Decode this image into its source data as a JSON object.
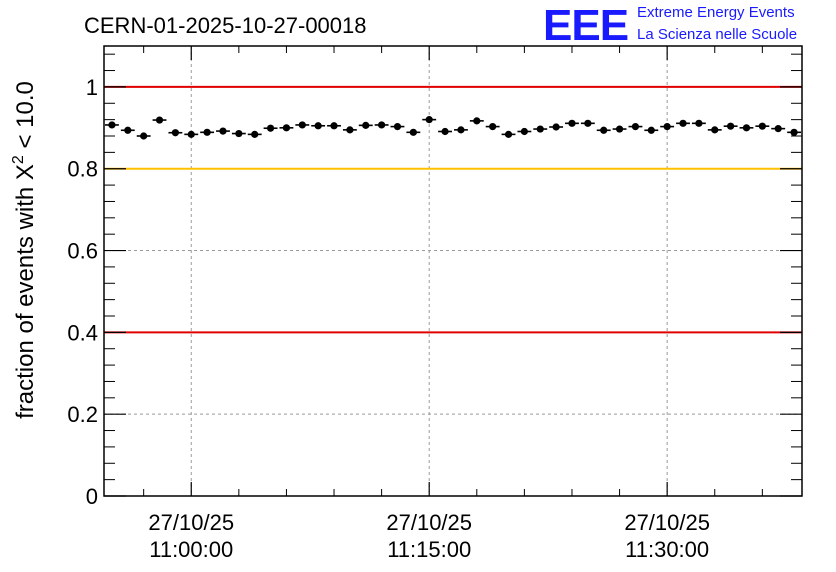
{
  "logo": {
    "mark": "EEE",
    "line1": "Extreme Energy Events",
    "line2": "La Scienza nelle Scuole",
    "color": "#1a1aff"
  },
  "chart_data": {
    "type": "scatter",
    "title": "CERN-01-2025-10-27-00018",
    "ylabel": "fraction of events with Χ² < 10.0",
    "ylabel_parts": {
      "before": "fraction of events with ",
      "chi": "Χ",
      "sup": "2",
      "after": " < 10.0"
    },
    "xlabel": "",
    "x_unit": "minutes after 27/10/25 10:54:30",
    "xlim": [
      0,
      44
    ],
    "ylim": [
      0,
      1.1
    ],
    "grid": true,
    "y_ticks": [
      {
        "value": 0,
        "label": "0"
      },
      {
        "value": 0.2,
        "label": "0.2"
      },
      {
        "value": 0.4,
        "label": "0.4"
      },
      {
        "value": 0.6,
        "label": "0.6"
      },
      {
        "value": 0.8,
        "label": "0.8"
      },
      {
        "value": 1.0,
        "label": "1"
      }
    ],
    "x_ticks": [
      {
        "value": 5.5,
        "date": "27/10/25",
        "time": "11:00:00"
      },
      {
        "value": 20.5,
        "date": "27/10/25",
        "time": "11:15:00"
      },
      {
        "value": 35.5,
        "date": "27/10/25",
        "time": "11:30:00"
      }
    ],
    "reference_lines": [
      {
        "y": 1.0,
        "color": "#e00000"
      },
      {
        "y": 0.8,
        "color": "#ffc000"
      },
      {
        "y": 0.4,
        "color": "#e00000"
      }
    ],
    "bin_width": 1,
    "series": [
      {
        "color": "#000000",
        "x": [
          0.5,
          1.5,
          2.5,
          3.5,
          4.5,
          5.5,
          6.5,
          7.5,
          8.5,
          9.5,
          10.5,
          11.5,
          12.5,
          13.5,
          14.5,
          15.5,
          16.5,
          17.5,
          18.5,
          19.5,
          20.5,
          21.5,
          22.5,
          23.5,
          24.5,
          25.5,
          26.5,
          27.5,
          28.5,
          29.5,
          30.5,
          31.5,
          32.5,
          33.5,
          34.5,
          35.5,
          36.5,
          37.5,
          38.5,
          39.5,
          40.5,
          41.5,
          42.5,
          43.5
        ],
        "y": [
          0.907,
          0.894,
          0.88,
          0.919,
          0.888,
          0.884,
          0.889,
          0.892,
          0.886,
          0.884,
          0.899,
          0.9,
          0.907,
          0.905,
          0.905,
          0.895,
          0.906,
          0.907,
          0.903,
          0.889,
          0.92,
          0.891,
          0.895,
          0.917,
          0.903,
          0.884,
          0.891,
          0.897,
          0.902,
          0.911,
          0.911,
          0.894,
          0.897,
          0.903,
          0.894,
          0.903,
          0.911,
          0.911,
          0.895,
          0.904,
          0.9,
          0.904,
          0.898,
          0.889
        ],
        "err": [
          0.006,
          0.006,
          0.006,
          0.006,
          0.006,
          0.006,
          0.006,
          0.006,
          0.006,
          0.006,
          0.006,
          0.006,
          0.006,
          0.006,
          0.006,
          0.006,
          0.006,
          0.006,
          0.006,
          0.006,
          0.006,
          0.006,
          0.006,
          0.006,
          0.006,
          0.006,
          0.006,
          0.006,
          0.006,
          0.006,
          0.006,
          0.006,
          0.006,
          0.006,
          0.006,
          0.006,
          0.006,
          0.006,
          0.006,
          0.006,
          0.006,
          0.006,
          0.006,
          0.006
        ]
      }
    ]
  }
}
